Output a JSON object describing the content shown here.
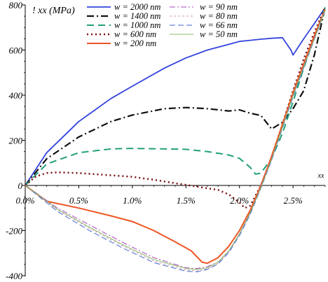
{
  "chart_data": {
    "type": "line",
    "ylabel": "! xx (MPa)",
    "xlabel": "xx",
    "xlim": [
      0,
      2.8
    ],
    "ylim": [
      -400,
      800
    ],
    "x_ticks": [
      0,
      0.5,
      1.0,
      1.5,
      2.0,
      2.5
    ],
    "x_tick_labels": [
      "0.0%",
      "0.5%",
      "1.0%",
      "1.5%",
      "2.0%",
      "2.5%"
    ],
    "y_ticks": [
      -400,
      -200,
      0,
      200,
      400,
      600,
      800
    ],
    "y_tick_labels": [
      "-400",
      "-200",
      "0",
      "200",
      "400",
      "600",
      "800"
    ],
    "legend_position": "top",
    "series": [
      {
        "name": "w = 2000 nm",
        "color": "#3344dd",
        "dash": "solid",
        "width": 1.8,
        "x": [
          0,
          0.2,
          0.5,
          0.8,
          1.0,
          1.3,
          1.5,
          1.7,
          1.9,
          2.0,
          2.1,
          2.2,
          2.3,
          2.4,
          2.48,
          2.5,
          2.6,
          2.7,
          2.8
        ],
        "y": [
          0,
          145,
          283,
          385,
          440,
          520,
          565,
          600,
          625,
          638,
          643,
          648,
          652,
          655,
          600,
          578,
          650,
          718,
          788
        ]
      },
      {
        "name": "w = 1400 nm",
        "color": "#111111",
        "dash": "10,4,2,4",
        "width": 2.2,
        "x": [
          0,
          0.2,
          0.5,
          0.8,
          1.0,
          1.3,
          1.5,
          1.7,
          1.9,
          2.0,
          2.1,
          2.2,
          2.3,
          2.4,
          2.5,
          2.6,
          2.7,
          2.8
        ],
        "y": [
          0,
          118,
          215,
          283,
          312,
          340,
          345,
          340,
          330,
          335,
          320,
          310,
          250,
          280,
          340,
          420,
          580,
          790
        ]
      },
      {
        "name": "w = 1000 nm",
        "color": "#22a07a",
        "dash": "10,6",
        "width": 2,
        "x": [
          0,
          0.2,
          0.5,
          0.8,
          1.0,
          1.3,
          1.5,
          1.7,
          1.9,
          2.0,
          2.1,
          2.15,
          2.2,
          2.3,
          2.4,
          2.5,
          2.6,
          2.7,
          2.8
        ],
        "y": [
          0,
          95,
          145,
          162,
          164,
          162,
          160,
          150,
          135,
          120,
          80,
          50,
          55,
          120,
          230,
          370,
          520,
          660,
          790
        ]
      },
      {
        "name": "w = 600 nm",
        "color": "#7a1010",
        "dash": "2,4",
        "width": 2.5,
        "x": [
          0,
          0.1,
          0.2,
          0.3,
          0.5,
          0.8,
          1.0,
          1.2,
          1.4,
          1.6,
          1.8,
          1.9,
          2.0,
          2.05,
          2.1,
          2.2,
          2.3,
          2.4,
          2.5,
          2.6,
          2.7,
          2.8
        ],
        "y": [
          0,
          40,
          55,
          58,
          55,
          45,
          38,
          25,
          10,
          -5,
          -20,
          -40,
          -75,
          -100,
          -90,
          0,
          120,
          270,
          420,
          560,
          680,
          790
        ]
      },
      {
        "name": "w = 200 nm",
        "color": "#ee5522",
        "dash": "solid",
        "width": 2,
        "x": [
          0,
          0.2,
          0.5,
          0.8,
          1.0,
          1.2,
          1.4,
          1.55,
          1.65,
          1.7,
          1.8,
          1.9,
          2.0,
          2.1,
          2.2,
          2.3,
          2.4,
          2.5,
          2.6,
          2.7,
          2.8
        ],
        "y": [
          0,
          -70,
          -100,
          -135,
          -160,
          -200,
          -250,
          -290,
          -340,
          -345,
          -320,
          -270,
          -200,
          -110,
          0,
          130,
          270,
          410,
          540,
          665,
          780
        ]
      },
      {
        "name": "w = 90 nm",
        "color": "#aa44bb",
        "dash": "8,3,2,3",
        "width": 1,
        "x": [
          0,
          0.3,
          0.6,
          0.9,
          1.2,
          1.5,
          1.6,
          1.7,
          1.8,
          1.9,
          2.0,
          2.1,
          2.2,
          2.3,
          2.4,
          2.5,
          2.6,
          2.7,
          2.8
        ],
        "y": [
          0,
          -100,
          -175,
          -250,
          -320,
          -365,
          -368,
          -360,
          -340,
          -290,
          -215,
          -120,
          -5,
          120,
          260,
          400,
          530,
          655,
          780
        ]
      },
      {
        "name": "w = 80 nm",
        "color": "#cc99bb",
        "dash": "3,3",
        "width": 1,
        "x": [
          0,
          0.3,
          0.6,
          0.9,
          1.2,
          1.5,
          1.6,
          1.7,
          1.8,
          1.9,
          2.0,
          2.1,
          2.2,
          2.3,
          2.4,
          2.5,
          2.6,
          2.7,
          2.8
        ],
        "y": [
          0,
          -108,
          -190,
          -265,
          -335,
          -375,
          -378,
          -370,
          -345,
          -295,
          -220,
          -125,
          -10,
          115,
          255,
          395,
          525,
          650,
          778
        ]
      },
      {
        "name": "w = 66 nm",
        "color": "#4466cc",
        "dash": "8,4",
        "width": 1,
        "x": [
          0,
          0.3,
          0.6,
          0.9,
          1.2,
          1.5,
          1.6,
          1.7,
          1.8,
          1.9,
          2.0,
          2.1,
          2.2,
          2.3,
          2.4,
          2.5,
          2.6,
          2.7,
          2.8
        ],
        "y": [
          0,
          -115,
          -200,
          -275,
          -342,
          -380,
          -383,
          -372,
          -348,
          -298,
          -222,
          -128,
          -12,
          112,
          252,
          392,
          522,
          648,
          775
        ]
      },
      {
        "name": "w = 50 nm",
        "color": "#88bb66",
        "dash": "solid",
        "width": 1,
        "x": [
          0,
          0.3,
          0.6,
          0.9,
          1.2,
          1.5,
          1.6,
          1.7,
          1.8,
          1.9,
          2.0,
          2.1,
          2.2,
          2.3,
          2.4,
          2.5,
          2.6,
          2.7,
          2.8
        ],
        "y": [
          0,
          -105,
          -185,
          -260,
          -328,
          -368,
          -372,
          -365,
          -340,
          -290,
          -215,
          -120,
          -8,
          118,
          258,
          398,
          528,
          652,
          778
        ]
      }
    ]
  }
}
